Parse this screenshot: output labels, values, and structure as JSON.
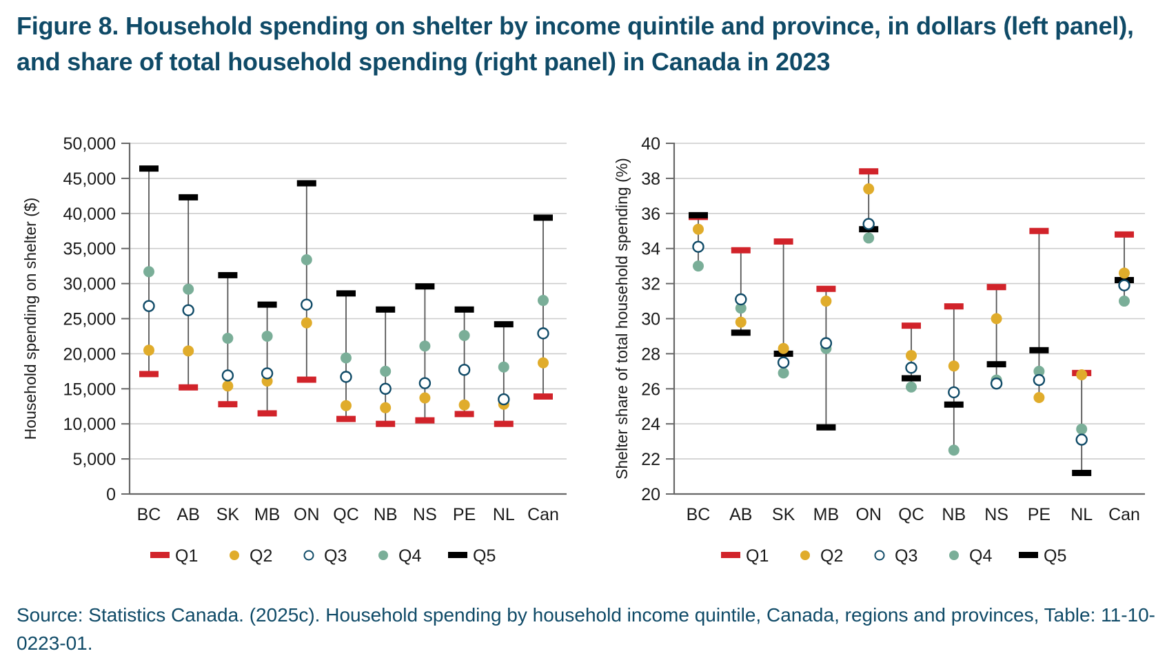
{
  "title": "Figure 8. Household spending on shelter by income quintile and province, in dollars (left panel), and share of total household spending (right panel) in Canada in 2023",
  "source": "Source: Statistics Canada. (2025c). Household spending by household income quintile, Canada, regions and provinces, Table: 11-10-0223-01.",
  "colors": {
    "title": "#0f4a67",
    "Q1": "#d1232a",
    "Q2": "#e0ac2b",
    "Q3": "#0f4a67",
    "Q4": "#7aae98",
    "Q5": "#000000",
    "grid": "#cccccc",
    "axis": "#666666"
  },
  "chart_data": [
    {
      "type": "scatter",
      "panel": "left",
      "title": "",
      "xlabel": "",
      "ylabel": "Household spending on shelter ($)",
      "ylim": [
        0,
        50000
      ],
      "yticks": [
        0,
        5000,
        10000,
        15000,
        20000,
        25000,
        30000,
        35000,
        40000,
        45000,
        50000
      ],
      "ytick_labels": [
        "0",
        "5,000",
        "10,000",
        "15,000",
        "20,000",
        "25,000",
        "30,000",
        "35,000",
        "40,000",
        "45,000",
        "50,000"
      ],
      "grid": true,
      "legend": "bottom",
      "categories": [
        "BC",
        "AB",
        "SK",
        "MB",
        "ON",
        "QC",
        "NB",
        "NS",
        "PE",
        "NL",
        "Can"
      ],
      "series": [
        {
          "name": "Q1",
          "marker": "bar",
          "values": [
            17100,
            15200,
            12800,
            11500,
            16300,
            10700,
            10000,
            10500,
            11400,
            10000,
            13900
          ]
        },
        {
          "name": "Q2",
          "marker": "filled-circle",
          "values": [
            20500,
            20400,
            15400,
            16100,
            24400,
            12600,
            12300,
            13700,
            12700,
            12800,
            18700
          ]
        },
        {
          "name": "Q3",
          "marker": "hollow-circle",
          "values": [
            26800,
            26200,
            16900,
            17200,
            27000,
            16700,
            15000,
            15800,
            17700,
            13500,
            22900
          ]
        },
        {
          "name": "Q4",
          "marker": "filled-circle",
          "values": [
            31700,
            29200,
            22200,
            22500,
            33400,
            19400,
            17500,
            21100,
            22600,
            18100,
            27600
          ]
        },
        {
          "name": "Q5",
          "marker": "bar",
          "values": [
            46400,
            42300,
            31200,
            27000,
            44300,
            28600,
            26300,
            29600,
            26300,
            24200,
            39400
          ]
        }
      ]
    },
    {
      "type": "scatter",
      "panel": "right",
      "title": "",
      "xlabel": "",
      "ylabel": "Shelter share of total household spending (%)",
      "ylim": [
        20,
        40
      ],
      "yticks": [
        20,
        22,
        24,
        26,
        28,
        30,
        32,
        34,
        36,
        38,
        40
      ],
      "ytick_labels": [
        "20",
        "22",
        "24",
        "26",
        "28",
        "30",
        "32",
        "34",
        "36",
        "38",
        "40"
      ],
      "grid": true,
      "legend": "bottom",
      "categories": [
        "BC",
        "AB",
        "SK",
        "MB",
        "ON",
        "QC",
        "NB",
        "NS",
        "PE",
        "NL",
        "Can"
      ],
      "series": [
        {
          "name": "Q1",
          "marker": "bar",
          "values": [
            35.8,
            33.9,
            34.4,
            31.7,
            38.4,
            29.6,
            30.7,
            31.8,
            35.0,
            26.9,
            34.8
          ]
        },
        {
          "name": "Q2",
          "marker": "filled-circle",
          "values": [
            35.1,
            29.8,
            28.3,
            31.0,
            37.4,
            27.9,
            27.3,
            30.0,
            25.5,
            26.8,
            32.6
          ]
        },
        {
          "name": "Q3",
          "marker": "hollow-circle",
          "values": [
            34.1,
            31.1,
            27.5,
            28.6,
            35.4,
            27.2,
            25.8,
            26.3,
            26.5,
            23.1,
            31.9
          ]
        },
        {
          "name": "Q4",
          "marker": "filled-circle",
          "values": [
            33.0,
            30.6,
            26.9,
            28.3,
            34.6,
            26.1,
            22.5,
            26.5,
            27.0,
            23.7,
            31.0
          ]
        },
        {
          "name": "Q5",
          "marker": "bar",
          "values": [
            35.9,
            29.2,
            28.0,
            23.8,
            35.1,
            26.6,
            25.1,
            27.4,
            28.2,
            21.2,
            32.2
          ]
        }
      ]
    }
  ]
}
